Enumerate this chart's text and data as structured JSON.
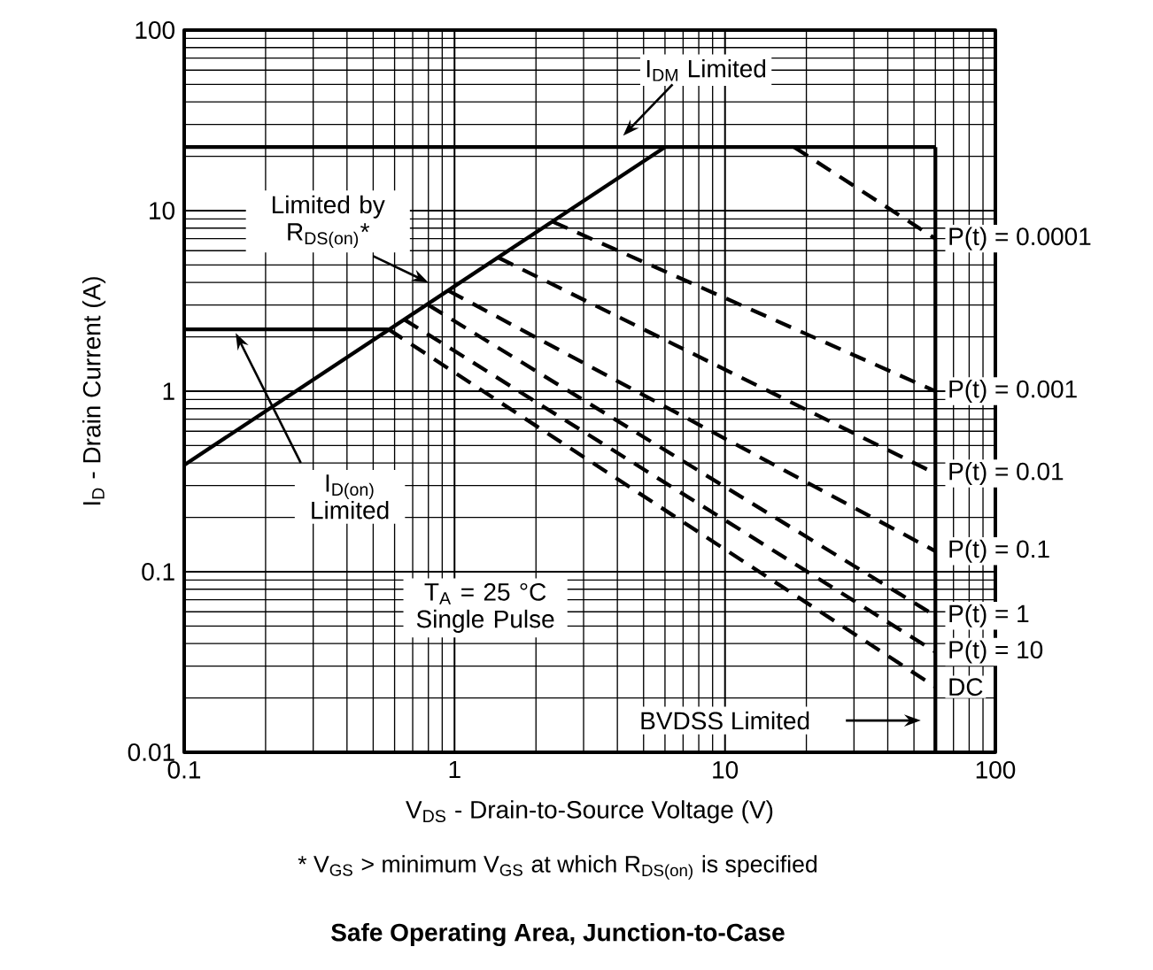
{
  "chart_data": {
    "type": "line",
    "title": "**Safe Operating Area, Junction-to-Case**",
    "xlabel": "V$_{DS}$ - Drain-to-Source Voltage (V)",
    "ylabel": "I$_{D}$ - Drain Current (A)",
    "log": "xy",
    "grid": true,
    "marker": "none",
    "xlim": [
      0.1,
      100
    ],
    "ylim": [
      0.01,
      100
    ],
    "xticks": [
      0.1,
      1,
      10,
      100
    ],
    "yticks": [
      0.01,
      0.1,
      1,
      10,
      100
    ],
    "series": [
      {
        "color": "#000000",
        "line_style": "solid",
        "x": [
          0.1,
          60
        ],
        "values": [
          22.5,
          22.5
        ]
      },
      {
        "color": "#000000",
        "line_style": "solid",
        "x": [
          0.1,
          6
        ],
        "values": [
          0.39,
          22.5
        ]
      },
      {
        "color": "#000000",
        "line_style": "solid",
        "x": [
          0.1,
          0.57
        ],
        "values": [
          2.2,
          2.2
        ]
      },
      {
        "color": "#000000",
        "line_style": "solid",
        "x": [
          60,
          60
        ],
        "values": [
          22.5,
          0.01
        ]
      },
      {
        "name": "P(t) = 0.0001",
        "color": "#000000",
        "line_style": "dashed",
        "x": [
          18,
          60
        ],
        "values": [
          22.5,
          7
        ]
      },
      {
        "name": "P(t) = 0.001",
        "color": "#000000",
        "line_style": "dashed",
        "x": [
          2.3,
          60
        ],
        "values": [
          8.7,
          1.0
        ]
      },
      {
        "name": "P(t) = 0.01",
        "color": "#000000",
        "line_style": "dashed",
        "x": [
          1.45,
          60
        ],
        "values": [
          5.5,
          0.35
        ]
      },
      {
        "name": "P(t) = 0.1",
        "color": "#000000",
        "line_style": "dashed",
        "x": [
          0.95,
          60
        ],
        "values": [
          3.6,
          0.13
        ]
      },
      {
        "name": "P(t) = 1",
        "color": "#000000",
        "line_style": "dashed",
        "x": [
          0.8,
          60
        ],
        "values": [
          3.0,
          0.057
        ]
      },
      {
        "name": "P(t) = 10",
        "color": "#000000",
        "line_style": "dashed",
        "x": [
          0.65,
          60
        ],
        "values": [
          2.5,
          0.036
        ]
      },
      {
        "name": "DC",
        "color": "#000000",
        "line_style": "dashed",
        "x": [
          0.57,
          60
        ],
        "values": [
          2.2,
          0.023
        ]
      }
    ],
    "annotations": [
      "I$_{DM}$ Limited",
      "Limited by R$_{DS(on)}$*",
      "I$_{D(on)}$ Limited",
      "T$_{A}$ = 25 °C Single Pulse",
      "BVDSS Limited",
      "* V$_{GS}$ > minimum V$_{GS}$ at which R$_{DS(on)}$ is specified"
    ]
  }
}
